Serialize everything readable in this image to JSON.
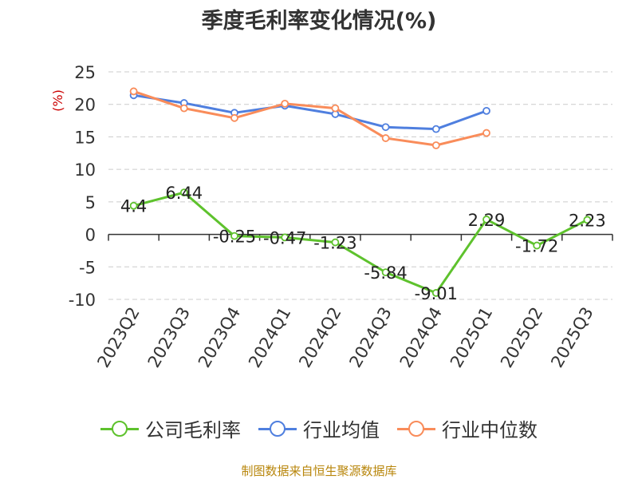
{
  "chart_data": {
    "type": "line",
    "title": "季度毛利率变化情况(%)",
    "ylabel": "(%)",
    "ylim": [
      -10,
      25
    ],
    "yticks": [
      25,
      20,
      15,
      10,
      5,
      0,
      -5,
      -10
    ],
    "categories": [
      "2023Q2",
      "2023Q3",
      "2023Q4",
      "2024Q1",
      "2024Q2",
      "2024Q3",
      "2024Q4",
      "2025Q1",
      "2025Q2",
      "2025Q3"
    ],
    "grid": true,
    "legend_position": "bottom",
    "series": [
      {
        "name": "公司毛利率",
        "color": "#5ec22d",
        "show_labels": true,
        "values": [
          4.4,
          6.44,
          -0.25,
          -0.47,
          -1.23,
          -5.84,
          -9.01,
          2.29,
          -1.72,
          2.23
        ]
      },
      {
        "name": "行业均值",
        "color": "#4f7fdf",
        "show_labels": false,
        "values": [
          21.4,
          20.2,
          18.7,
          19.8,
          18.5,
          16.5,
          16.2,
          19.0,
          null,
          null
        ]
      },
      {
        "name": "行业中位数",
        "color": "#f98c5a",
        "show_labels": false,
        "values": [
          22.0,
          19.4,
          17.9,
          20.1,
          19.4,
          14.8,
          13.7,
          15.6,
          null,
          null
        ]
      }
    ]
  },
  "legend": [
    {
      "label": "公司毛利率",
      "color": "#5ec22d"
    },
    {
      "label": "行业均值",
      "color": "#4f7fdf"
    },
    {
      "label": "行业中位数",
      "color": "#f98c5a"
    }
  ],
  "source": "制图数据来自恒生聚源数据库"
}
